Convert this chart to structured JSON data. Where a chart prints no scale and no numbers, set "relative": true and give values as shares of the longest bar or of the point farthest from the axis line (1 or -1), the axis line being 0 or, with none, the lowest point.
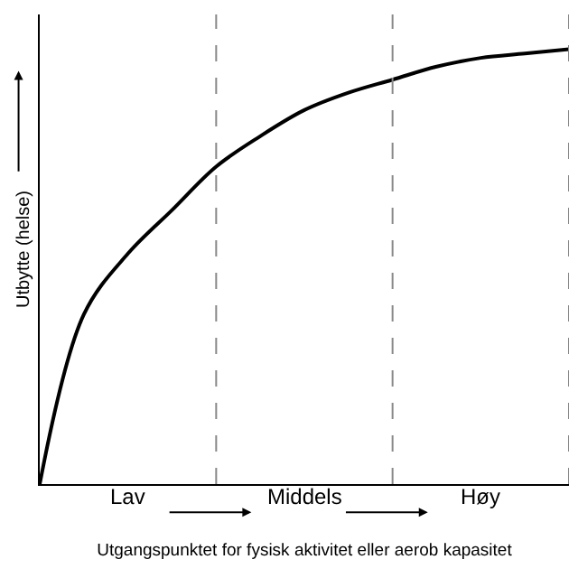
{
  "chart_data": {
    "type": "line",
    "relative": true,
    "xlabel": "Utgangspunktet for fysisk aktivitet eller aerob kapasitet",
    "ylabel": "Utbytte (helse)",
    "categories": [
      null,
      null,
      null,
      null,
      null,
      null,
      null,
      null,
      null,
      null,
      null,
      null,
      null
    ],
    "annotations": [
      "Lav",
      "Middels",
      "Høy"
    ],
    "series": [
      {
        "color": "#000000",
        "values": [
          0,
          0.39,
          0.53,
          0.63,
          0.73,
          0.8,
          0.86,
          0.9,
          0.93,
          0.96,
          0.98,
          0.99,
          1
        ]
      }
    ],
    "grid": false,
    "marker": "none",
    "line_style": "solid"
  }
}
